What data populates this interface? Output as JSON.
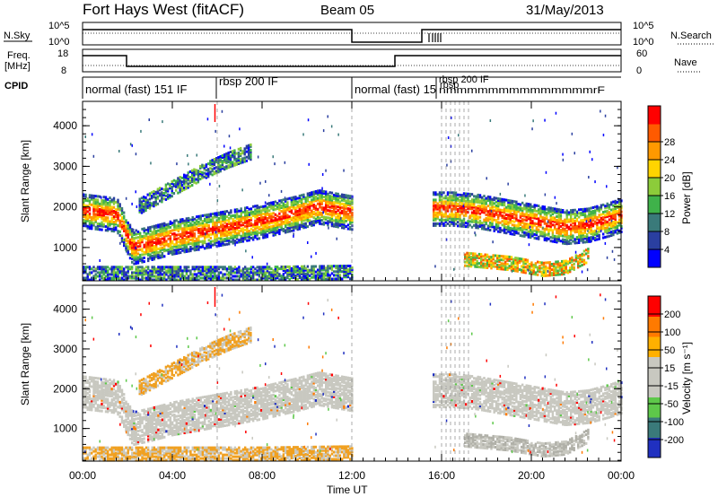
{
  "header": {
    "title": "Fort Hays West (fitACF)",
    "beam": "Beam 05",
    "date": "31/May/2013"
  },
  "summary_panels": {
    "nsky_label": "N.Sky",
    "nsearch_label": "N.Search",
    "nsky_ticks": [
      "10^5",
      "10^0"
    ],
    "nsky_right_ticks": [
      "10^5",
      "10^0"
    ],
    "freq_label_1": "Freq.",
    "freq_label_2": "[MHz]",
    "freq_ticks": [
      "18",
      "8"
    ],
    "nave_label": "Nave",
    "nave_ticks": [
      "60",
      "0"
    ],
    "cpid_label": "CPID"
  },
  "cpid_segments": [
    {
      "label": "normal (fast) 151 IF",
      "start_h": 0.0,
      "end_h": 6.0
    },
    {
      "label": "rbsp 200 IF",
      "start_h": 6.0,
      "end_h": 12.0
    },
    {
      "label": "normal (fast) 15",
      "start_h": 12.0,
      "end_h": 15.7
    },
    {
      "label": "rbsp 200 IF",
      "start_h": 15.7,
      "end_h": 18.5
    },
    {
      "label": "rbsp",
      "start_h": 16.0,
      "end_h": 18.5
    },
    {
      "label": "nmmmmmmmmmmmmmmrF",
      "start_h": 16.1,
      "end_h": 22.5
    }
  ],
  "chart_data": [
    {
      "type": "heatmap",
      "title": "",
      "xlabel": "",
      "ylabel": "Slant Range [km]",
      "xlim_hours": [
        0,
        24
      ],
      "ylim_km": [
        180,
        4600
      ],
      "yticks": [
        "1000",
        "2000",
        "3000",
        "4000"
      ],
      "colorbar": {
        "label": "Power [dB]",
        "ticks": [
          "4",
          "8",
          "12",
          "16",
          "20",
          "24",
          "28"
        ],
        "colors": [
          "#0000ff",
          "#2a3fa0",
          "#3a7a7a",
          "#3fb24a",
          "#8ccc3a",
          "#ffd400",
          "#ff9900",
          "#ff5a00",
          "#ff0000"
        ]
      },
      "echo_bands": [
        {
          "name": "main",
          "points": [
            [
              0,
              1900
            ],
            [
              1.5,
              1800
            ],
            [
              2.2,
              1000
            ],
            [
              3,
              1100
            ],
            [
              4,
              1250
            ],
            [
              6,
              1450
            ],
            [
              8,
              1650
            ],
            [
              9.5,
              1850
            ],
            [
              10.5,
              2000
            ],
            [
              11.5,
              1900
            ],
            [
              12,
              1850
            ]
          ]
        },
        {
          "name": "main-late",
          "points": [
            [
              15.6,
              1950
            ],
            [
              16.5,
              1950
            ],
            [
              17.5,
              1900
            ],
            [
              18.5,
              1800
            ],
            [
              19.5,
              1700
            ],
            [
              20.5,
              1600
            ],
            [
              21.5,
              1500
            ],
            [
              22.5,
              1550
            ],
            [
              23.5,
              1700
            ],
            [
              24,
              1800
            ]
          ]
        },
        {
          "name": "upper-branch",
          "points": [
            [
              2.5,
              2000
            ],
            [
              3.5,
              2300
            ],
            [
              4.5,
              2600
            ],
            [
              5.5,
              2900
            ],
            [
              6.5,
              3150
            ],
            [
              7.5,
              3350
            ]
          ]
        },
        {
          "name": "near-range",
          "points": [
            [
              0,
              350
            ],
            [
              4,
              350
            ],
            [
              8,
              350
            ],
            [
              12,
              380
            ]
          ]
        },
        {
          "name": "lower-late",
          "points": [
            [
              17,
              700
            ],
            [
              19,
              600
            ],
            [
              20.5,
              450
            ],
            [
              21.5,
              500
            ],
            [
              22.5,
              800
            ]
          ]
        }
      ]
    },
    {
      "type": "heatmap",
      "title": "",
      "xlabel": "Time UT",
      "ylabel": "Slant Range [km]",
      "xlim_hours": [
        0,
        24
      ],
      "ylim_km": [
        180,
        4600
      ],
      "xticks": [
        "00:00",
        "04:00",
        "08:00",
        "12:00",
        "16:00",
        "20:00",
        "00:00"
      ],
      "yticks": [
        "1000",
        "2000",
        "3000",
        "4000"
      ],
      "colorbar": {
        "label": "Velocity [m s⁻¹]",
        "ticks": [
          "200",
          "100",
          "50",
          "15",
          "-15",
          "-50",
          "-100",
          "-200"
        ],
        "colors": [
          "#2030c0",
          "#3a7a7a",
          "#5ec84a",
          "#c8c8c0",
          "#c8c8c0",
          "#ffb000",
          "#ff7a00",
          "#ff0000"
        ]
      }
    }
  ],
  "colors": {
    "frame": "#000000",
    "ground_scatter": "#c0c0b8",
    "orange_echo": "#f0a020"
  }
}
